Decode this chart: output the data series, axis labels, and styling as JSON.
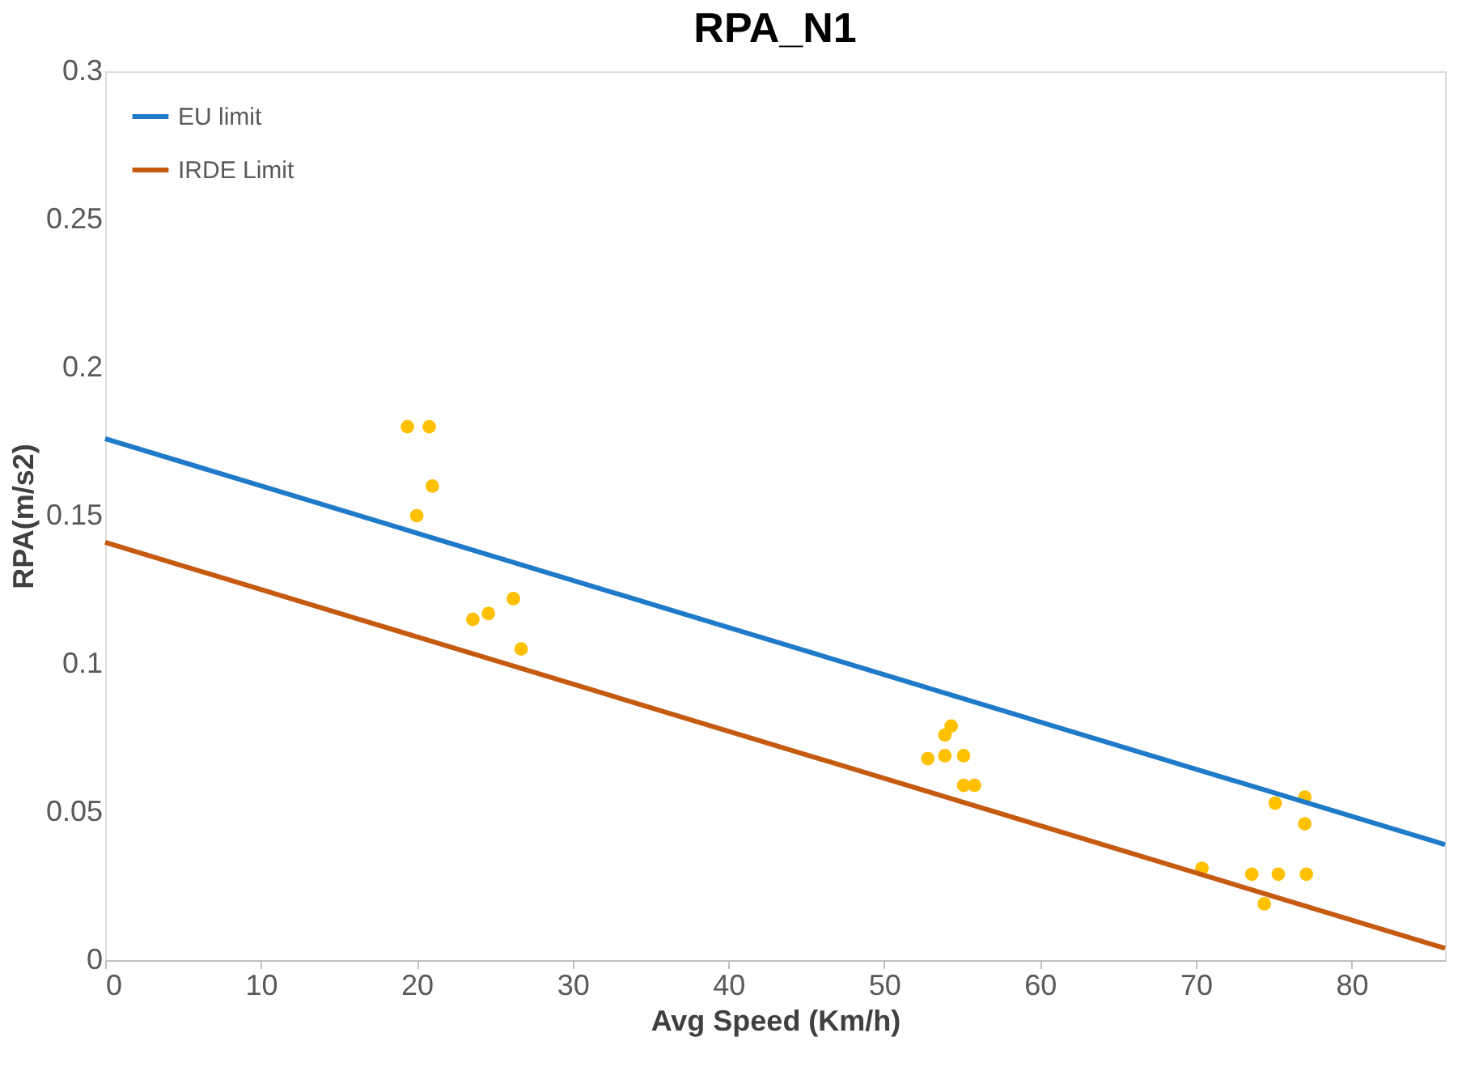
{
  "chart_data": {
    "type": "scatter",
    "title": "RPA_N1",
    "xlabel": "Avg Speed (Km/h)",
    "ylabel": "RPA(m/s2)",
    "xlim": [
      0,
      86
    ],
    "xticks": [
      0,
      10,
      20,
      30,
      40,
      50,
      60,
      70,
      80
    ],
    "ylim": [
      0,
      0.3
    ],
    "yticks": [
      0,
      0.05,
      0.1,
      0.15,
      0.2,
      0.25,
      0.3
    ],
    "grid": false,
    "legend": "top left",
    "series": [
      {
        "type": "scatter",
        "marker": "circle",
        "color": "#ffc000",
        "x": [
          19.4,
          20.8,
          21.0,
          20.0,
          23.6,
          24.6,
          26.2,
          26.7,
          54.3,
          53.9,
          53.9,
          55.1,
          52.8,
          55.1,
          55.8,
          75.1,
          77.0,
          77.0,
          70.4,
          73.6,
          75.3,
          77.1,
          74.4
        ],
        "values": [
          0.18,
          0.18,
          0.16,
          0.15,
          0.115,
          0.117,
          0.122,
          0.105,
          0.079,
          0.076,
          0.069,
          0.069,
          0.068,
          0.059,
          0.059,
          0.053,
          0.055,
          0.046,
          0.031,
          0.029,
          0.029,
          0.029,
          0.019
        ]
      },
      {
        "type": "line",
        "name": "EU limit",
        "color": "#1f7bc8",
        "x": [
          0,
          86
        ],
        "values": [
          0.176,
          0.039
        ]
      },
      {
        "type": "line",
        "name": "IRDE Limit",
        "color": "#c55a11",
        "x": [
          0,
          86
        ],
        "values": [
          0.141,
          0.004
        ]
      }
    ]
  }
}
